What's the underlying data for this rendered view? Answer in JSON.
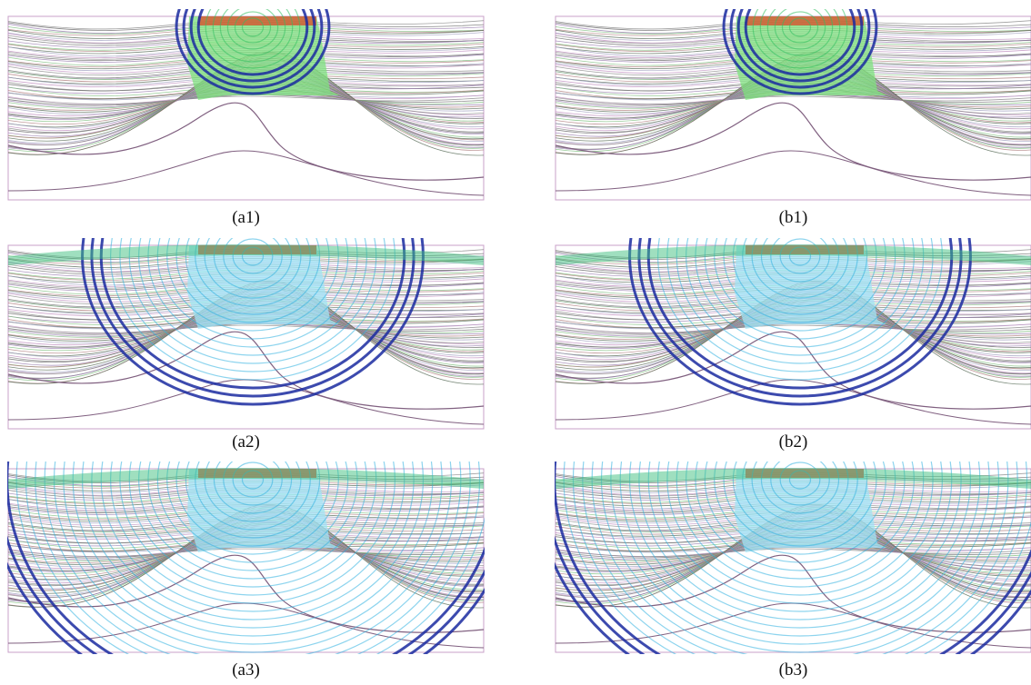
{
  "panels": [
    {
      "caption": "(a1)"
    },
    {
      "caption": "(b1)"
    },
    {
      "caption": "(a2)"
    },
    {
      "caption": "(b2)"
    },
    {
      "caption": "(a3)"
    },
    {
      "caption": "(b3)"
    }
  ]
}
